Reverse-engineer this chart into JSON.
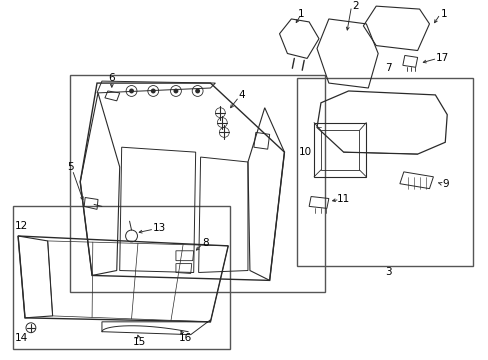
{
  "bg_color": "#ffffff",
  "line_color": "#2a2a2a",
  "box_color": "#555555",
  "fig_w": 4.89,
  "fig_h": 3.6,
  "dpi": 100
}
